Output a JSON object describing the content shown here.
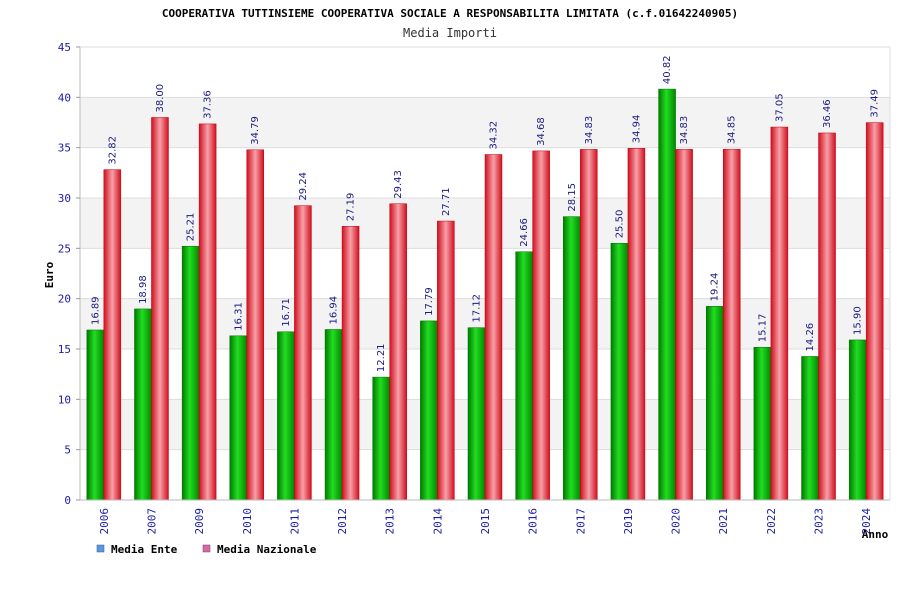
{
  "chart_data": {
    "type": "bar",
    "title": "COOPERATIVA TUTTINSIEME COOPERATIVA SOCIALE A RESPONSABILITA LIMITATA (c.f.01642240905)",
    "subtitle": "Media Importi",
    "xlabel": "Anno",
    "ylabel": "Euro",
    "ylim": [
      0,
      45
    ],
    "yticks": [
      0,
      5,
      10,
      15,
      20,
      25,
      30,
      35,
      40,
      45
    ],
    "categories": [
      "2006",
      "2007",
      "2009",
      "2010",
      "2011",
      "2012",
      "2013",
      "2014",
      "2015",
      "2016",
      "2017",
      "2019",
      "2020",
      "2021",
      "2022",
      "2023",
      "2024"
    ],
    "series": [
      {
        "name": "Media Ente",
        "color": "#00b000",
        "legend_color": "#5599ee",
        "values": [
          16.89,
          18.98,
          25.21,
          16.31,
          16.71,
          16.94,
          12.21,
          17.79,
          17.12,
          24.66,
          28.15,
          25.5,
          40.82,
          19.24,
          15.17,
          14.26,
          15.9
        ],
        "labels": [
          "16.89",
          "18.98",
          "25.21",
          "16.31",
          "16.71",
          "16.94",
          "12.21",
          "17.79",
          "17.12",
          "24.66",
          "28.15",
          "25.50",
          "40.82",
          "19.24",
          "15.17",
          "14.26",
          "15.90"
        ]
      },
      {
        "name": "Media Nazionale",
        "color": "#e01020",
        "legend_color": "#dd66aa",
        "values": [
          32.82,
          38.0,
          37.36,
          34.79,
          29.24,
          27.19,
          29.43,
          27.71,
          34.32,
          34.68,
          34.83,
          34.94,
          34.83,
          34.85,
          37.05,
          36.46,
          37.49
        ],
        "labels": [
          "32.82",
          "38.00",
          "37.36",
          "34.79",
          "29.24",
          "27.19",
          "29.43",
          "27.71",
          "34.32",
          "34.68",
          "34.83",
          "34.94",
          "34.83",
          "34.85",
          "37.05",
          "36.46",
          "37.49"
        ]
      }
    ],
    "grid": true,
    "legend_position": "bottom-left"
  }
}
